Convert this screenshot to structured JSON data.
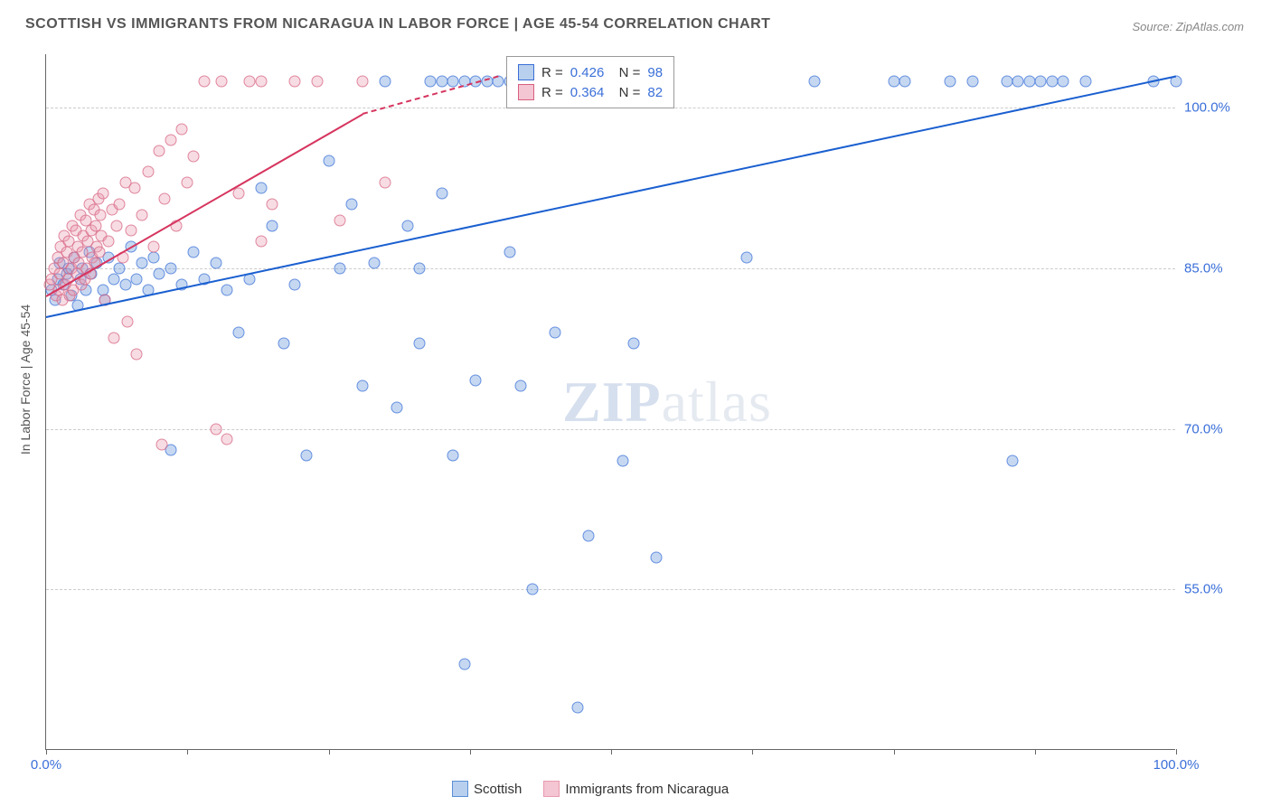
{
  "title": "SCOTTISH VS IMMIGRANTS FROM NICARAGUA IN LABOR FORCE | AGE 45-54 CORRELATION CHART",
  "source_label": "Source: ZipAtlas.com",
  "y_axis_label": "In Labor Force | Age 45-54",
  "watermark": {
    "part1": "ZIP",
    "part2": "atlas"
  },
  "chart": {
    "type": "scatter",
    "background_color": "#ffffff",
    "grid_color": "#cccccc",
    "axis_color": "#666666",
    "xlim": [
      0,
      100
    ],
    "ylim": [
      40,
      105
    ],
    "x_ticks": [
      0,
      12.5,
      25,
      37.5,
      50,
      62.5,
      75,
      87.5,
      100
    ],
    "x_tick_labels": {
      "0": "0.0%",
      "100": "100.0%"
    },
    "y_gridlines": [
      55,
      70,
      85,
      100
    ],
    "y_tick_labels": {
      "55": "55.0%",
      "70": "70.0%",
      "85": "85.0%",
      "100": "100.0%"
    },
    "marker_radius": 6.5,
    "marker_fill_opacity": 0.35,
    "marker_stroke_opacity": 0.7,
    "marker_stroke_width": 1.5,
    "title_fontsize": 16,
    "label_fontsize": 14,
    "tick_fontsize": 15,
    "tick_label_color": "#3a6fd8",
    "series": [
      {
        "name": "Scottish",
        "color": "#5b8fd6",
        "stroke": "#3a6fd8",
        "legend_swatch_fill": "#b8cfed",
        "trend_color": "#1a5fd0",
        "R": "0.426",
        "N": "98",
        "trend": {
          "x1": 0,
          "y1": 80.5,
          "x2": 100,
          "y2": 103
        },
        "points": [
          [
            0.5,
            83
          ],
          [
            0.8,
            82
          ],
          [
            1,
            84
          ],
          [
            1.2,
            85.5
          ],
          [
            1.5,
            83.5
          ],
          [
            1.8,
            84.5
          ],
          [
            2,
            85
          ],
          [
            2.2,
            82.5
          ],
          [
            2.5,
            86
          ],
          [
            2.8,
            81.5
          ],
          [
            3,
            84
          ],
          [
            3.2,
            85
          ],
          [
            3.5,
            83
          ],
          [
            3.8,
            86.5
          ],
          [
            4,
            84.5
          ],
          [
            4.5,
            85.5
          ],
          [
            5,
            83
          ],
          [
            5.2,
            82
          ],
          [
            5.5,
            86
          ],
          [
            6,
            84
          ],
          [
            6.5,
            85
          ],
          [
            7,
            83.5
          ],
          [
            7.5,
            87
          ],
          [
            8,
            84
          ],
          [
            8.5,
            85.5
          ],
          [
            9,
            83
          ],
          [
            9.5,
            86
          ],
          [
            10,
            84.5
          ],
          [
            11,
            85
          ],
          [
            12,
            83.5
          ],
          [
            13,
            86.5
          ],
          [
            14,
            84
          ],
          [
            15,
            85.5
          ],
          [
            16,
            83
          ],
          [
            17,
            79
          ],
          [
            18,
            84
          ],
          [
            19,
            92.5
          ],
          [
            20,
            89
          ],
          [
            21,
            78
          ],
          [
            22,
            83.5
          ],
          [
            23,
            67.5
          ],
          [
            11,
            68
          ],
          [
            25,
            95
          ],
          [
            26,
            85
          ],
          [
            27,
            91
          ],
          [
            28,
            74
          ],
          [
            29,
            85.5
          ],
          [
            30,
            102.5
          ],
          [
            31,
            72
          ],
          [
            32,
            89
          ],
          [
            33,
            85
          ],
          [
            33,
            78
          ],
          [
            34,
            102.5
          ],
          [
            35,
            92
          ],
          [
            35,
            102.5
          ],
          [
            36,
            102.5
          ],
          [
            36,
            67.5
          ],
          [
            37,
            102.5
          ],
          [
            37,
            48
          ],
          [
            38,
            74.5
          ],
          [
            38,
            102.5
          ],
          [
            39,
            102.5
          ],
          [
            40,
            102.5
          ],
          [
            41,
            86.5
          ],
          [
            41,
            102.5
          ],
          [
            42,
            102.5
          ],
          [
            42,
            74
          ],
          [
            43,
            102.5
          ],
          [
            43,
            55
          ],
          [
            44,
            102.5
          ],
          [
            45,
            102.5
          ],
          [
            45,
            79
          ],
          [
            46,
            102.5
          ],
          [
            47,
            44
          ],
          [
            48,
            60
          ],
          [
            49,
            102.5
          ],
          [
            50,
            102.5
          ],
          [
            51,
            67
          ],
          [
            52,
            78
          ],
          [
            53,
            102.5
          ],
          [
            54,
            58
          ],
          [
            55,
            102.5
          ],
          [
            62,
            86
          ],
          [
            68,
            102.5
          ],
          [
            75,
            102.5
          ],
          [
            76,
            102.5
          ],
          [
            80,
            102.5
          ],
          [
            82,
            102.5
          ],
          [
            85,
            102.5
          ],
          [
            85.5,
            67
          ],
          [
            86,
            102.5
          ],
          [
            87,
            102.5
          ],
          [
            88,
            102.5
          ],
          [
            89,
            102.5
          ],
          [
            90,
            102.5
          ],
          [
            92,
            102.5
          ],
          [
            98,
            102.5
          ],
          [
            100,
            102.5
          ]
        ]
      },
      {
        "name": "Immigrants from Nicaragua",
        "color": "#e89ab0",
        "stroke": "#d6607f",
        "legend_swatch_fill": "#f4c5d2",
        "trend_color": "#d6355f",
        "R": "0.364",
        "N": "82",
        "trend": {
          "x1": 0,
          "y1": 82.5,
          "x2": 28,
          "y2": 99.5
        },
        "trend_dashed": {
          "x1": 28,
          "y1": 99.5,
          "x2": 40,
          "y2": 103
        },
        "points": [
          [
            0.3,
            83.5
          ],
          [
            0.5,
            84
          ],
          [
            0.7,
            85
          ],
          [
            0.9,
            82.5
          ],
          [
            1,
            86
          ],
          [
            1.1,
            83
          ],
          [
            1.2,
            84.5
          ],
          [
            1.3,
            87
          ],
          [
            1.4,
            82
          ],
          [
            1.5,
            85.5
          ],
          [
            1.6,
            88
          ],
          [
            1.7,
            83.5
          ],
          [
            1.8,
            86.5
          ],
          [
            1.9,
            84
          ],
          [
            2,
            87.5
          ],
          [
            2.1,
            82.5
          ],
          [
            2.2,
            85
          ],
          [
            2.3,
            89
          ],
          [
            2.4,
            83
          ],
          [
            2.5,
            86
          ],
          [
            2.6,
            88.5
          ],
          [
            2.7,
            84.5
          ],
          [
            2.8,
            87
          ],
          [
            2.9,
            85.5
          ],
          [
            3,
            90
          ],
          [
            3.1,
            83.5
          ],
          [
            3.2,
            86.5
          ],
          [
            3.3,
            88
          ],
          [
            3.4,
            84
          ],
          [
            3.5,
            89.5
          ],
          [
            3.6,
            85
          ],
          [
            3.7,
            87.5
          ],
          [
            3.8,
            91
          ],
          [
            3.9,
            84.5
          ],
          [
            4,
            88.5
          ],
          [
            4.1,
            86
          ],
          [
            4.2,
            90.5
          ],
          [
            4.3,
            85.5
          ],
          [
            4.4,
            89
          ],
          [
            4.5,
            87
          ],
          [
            4.6,
            91.5
          ],
          [
            4.7,
            86.5
          ],
          [
            4.8,
            90
          ],
          [
            4.9,
            88
          ],
          [
            5,
            92
          ],
          [
            5.2,
            82
          ],
          [
            5.5,
            87.5
          ],
          [
            5.8,
            90.5
          ],
          [
            6,
            78.5
          ],
          [
            6.2,
            89
          ],
          [
            6.5,
            91
          ],
          [
            6.8,
            86
          ],
          [
            7,
            93
          ],
          [
            7.2,
            80
          ],
          [
            7.5,
            88.5
          ],
          [
            7.8,
            92.5
          ],
          [
            8,
            77
          ],
          [
            8.5,
            90
          ],
          [
            9,
            94
          ],
          [
            9.5,
            87
          ],
          [
            10,
            96
          ],
          [
            10.2,
            68.5
          ],
          [
            10.5,
            91.5
          ],
          [
            11,
            97
          ],
          [
            11.5,
            89
          ],
          [
            12,
            98
          ],
          [
            12.5,
            93
          ],
          [
            13,
            95.5
          ],
          [
            14,
            102.5
          ],
          [
            15,
            70
          ],
          [
            15.5,
            102.5
          ],
          [
            16,
            69
          ],
          [
            17,
            92
          ],
          [
            18,
            102.5
          ],
          [
            19,
            87.5
          ],
          [
            19,
            102.5
          ],
          [
            20,
            91
          ],
          [
            22,
            102.5
          ],
          [
            24,
            102.5
          ],
          [
            26,
            89.5
          ],
          [
            28,
            102.5
          ],
          [
            30,
            93
          ]
        ]
      }
    ],
    "legend_bottom": [
      {
        "label": "Scottish",
        "fill": "#b8cfed",
        "stroke": "#5b8fd6"
      },
      {
        "label": "Immigrants from Nicaragua",
        "fill": "#f4c5d2",
        "stroke": "#e89ab0"
      }
    ]
  }
}
